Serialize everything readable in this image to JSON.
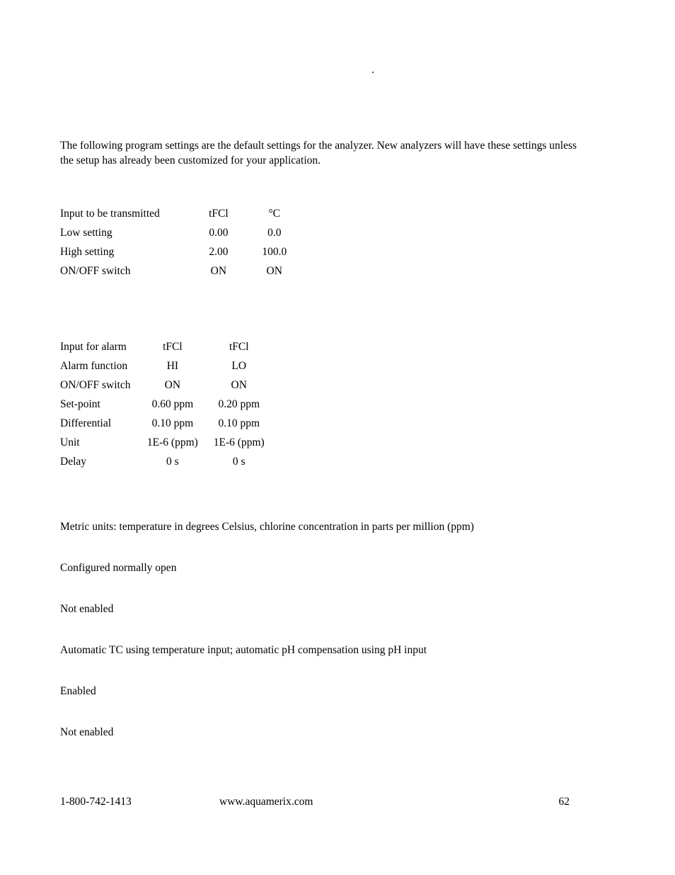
{
  "header_dot": ".",
  "intro": "The following program settings are the default settings for the analyzer.  New analyzers will have these settings unless the setup has already been customized for your application.",
  "table1": {
    "rows": [
      {
        "label": "Input to be transmitted",
        "c1": "tFCl",
        "c2": "°C"
      },
      {
        "label": "Low setting",
        "c1": "0.00",
        "c2": "0.0"
      },
      {
        "label": "High setting",
        "c1": "2.00",
        "c2": "100.0"
      },
      {
        "label": "ON/OFF switch",
        "c1": "ON",
        "c2": "ON"
      }
    ]
  },
  "table2": {
    "rows": [
      {
        "label": "Input for alarm",
        "c1": "tFCl",
        "c2": "tFCl"
      },
      {
        "label": "Alarm function",
        "c1": "HI",
        "c2": "LO"
      },
      {
        "label": "ON/OFF switch",
        "c1": "ON",
        "c2": "ON"
      },
      {
        "label": "Set-point",
        "c1": "0.60 ppm",
        "c2": "0.20 ppm"
      },
      {
        "label": "Differential",
        "c1": "0.10 ppm",
        "c2": "0.10 ppm"
      },
      {
        "label": "Unit",
        "c1": "1E-6 (ppm)",
        "c2": "1E-6 (ppm)"
      },
      {
        "label": "Delay",
        "c1": "0 s",
        "c2": "0 s"
      }
    ]
  },
  "notes": [
    "Metric units:  temperature in degrees Celsius, chlorine concentration in parts per million (ppm)",
    "Configured normally open",
    "Not enabled",
    "Automatic TC using temperature input; automatic pH compensation using pH input",
    "Enabled",
    "Not enabled"
  ],
  "footer": {
    "phone": "1-800-742-1413",
    "url": "www.aquamerix.com",
    "page": "62"
  }
}
